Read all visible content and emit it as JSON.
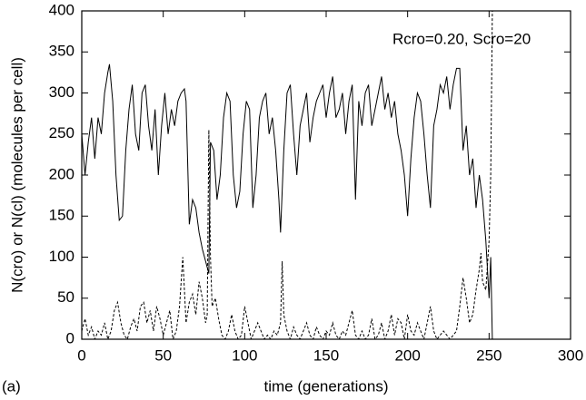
{
  "chart_data": {
    "type": "line",
    "xlabel": "time   (generations)",
    "ylabel": "N(cro) or N(cl)   (molecules per cell)",
    "annotation": "Rcro=0.20, Scro=20",
    "panel_label": "(a)",
    "xlim": [
      0,
      300
    ],
    "xticks": [
      0,
      50,
      100,
      150,
      200,
      250,
      300
    ],
    "ylim": [
      0,
      400
    ],
    "yticks": [
      0,
      50,
      100,
      150,
      200,
      250,
      300,
      350,
      400
    ],
    "series": [
      {
        "color": "#000000",
        "dashed": false,
        "x": [
          0,
          2,
          4,
          6,
          8,
          10,
          12,
          14,
          16,
          17,
          19,
          21,
          23,
          25,
          27,
          29,
          31,
          33,
          35,
          37,
          39,
          41,
          43,
          45,
          47,
          49,
          51,
          53,
          55,
          57,
          59,
          61,
          63,
          64,
          66,
          68,
          70,
          72,
          74,
          76,
          78,
          79,
          81,
          83,
          85,
          87,
          89,
          91,
          93,
          95,
          97,
          99,
          101,
          103,
          105,
          107,
          109,
          111,
          113,
          115,
          117,
          119,
          121,
          122,
          124,
          126,
          128,
          130,
          132,
          134,
          136,
          138,
          140,
          142,
          144,
          146,
          148,
          150,
          152,
          154,
          156,
          158,
          160,
          162,
          164,
          166,
          168,
          170,
          172,
          174,
          176,
          178,
          180,
          182,
          184,
          186,
          188,
          190,
          192,
          194,
          196,
          198,
          200,
          202,
          204,
          206,
          208,
          210,
          212,
          214,
          216,
          218,
          220,
          222,
          224,
          226,
          228,
          230,
          232,
          234,
          236,
          238,
          240,
          242,
          244,
          246,
          248,
          250,
          251,
          252
        ],
        "values": [
          250,
          200,
          240,
          270,
          220,
          270,
          250,
          300,
          325,
          335,
          290,
          200,
          145,
          150,
          230,
          280,
          310,
          250,
          230,
          300,
          310,
          260,
          230,
          280,
          200,
          260,
          300,
          250,
          280,
          260,
          290,
          300,
          305,
          290,
          140,
          170,
          160,
          130,
          110,
          95,
          80,
          240,
          230,
          170,
          200,
          270,
          300,
          290,
          200,
          160,
          180,
          250,
          290,
          280,
          160,
          200,
          270,
          290,
          300,
          250,
          270,
          230,
          170,
          130,
          230,
          300,
          310,
          250,
          200,
          260,
          280,
          300,
          240,
          270,
          290,
          300,
          310,
          270,
          300,
          320,
          270,
          280,
          300,
          250,
          290,
          310,
          170,
          290,
          260,
          300,
          310,
          260,
          280,
          300,
          320,
          280,
          300,
          270,
          290,
          250,
          230,
          200,
          150,
          220,
          270,
          300,
          290,
          250,
          200,
          160,
          260,
          280,
          310,
          300,
          320,
          280,
          310,
          330,
          330,
          230,
          260,
          200,
          220,
          160,
          200,
          170,
          120,
          50,
          100,
          0
        ]
      },
      {
        "color": "#000000",
        "dashed": true,
        "x": [
          0,
          2,
          4,
          6,
          8,
          10,
          12,
          14,
          16,
          18,
          20,
          22,
          24,
          26,
          28,
          30,
          32,
          34,
          36,
          38,
          40,
          42,
          44,
          46,
          48,
          50,
          52,
          54,
          56,
          58,
          60,
          62,
          63,
          64,
          66,
          68,
          70,
          72,
          74,
          76,
          77,
          78,
          79,
          80,
          82,
          84,
          86,
          88,
          90,
          92,
          94,
          96,
          98,
          100,
          102,
          104,
          106,
          108,
          110,
          112,
          114,
          116,
          118,
          120,
          122,
          123,
          124,
          126,
          128,
          130,
          132,
          134,
          136,
          138,
          140,
          142,
          144,
          146,
          148,
          150,
          152,
          154,
          156,
          158,
          160,
          162,
          164,
          166,
          168,
          170,
          172,
          174,
          176,
          178,
          180,
          182,
          184,
          186,
          188,
          190,
          192,
          194,
          196,
          198,
          200,
          202,
          204,
          206,
          208,
          210,
          212,
          214,
          216,
          218,
          220,
          222,
          224,
          226,
          228,
          230,
          232,
          234,
          236,
          238,
          240,
          242,
          244,
          245,
          246,
          248,
          250,
          251,
          252
        ],
        "values": [
          10,
          25,
          5,
          15,
          0,
          10,
          5,
          20,
          0,
          10,
          35,
          45,
          20,
          5,
          0,
          15,
          25,
          10,
          40,
          45,
          20,
          35,
          10,
          40,
          25,
          5,
          20,
          35,
          0,
          10,
          40,
          100,
          60,
          20,
          45,
          55,
          30,
          70,
          50,
          20,
          30,
          255,
          100,
          40,
          50,
          25,
          5,
          0,
          10,
          30,
          10,
          0,
          5,
          40,
          20,
          0,
          10,
          20,
          10,
          0,
          5,
          0,
          10,
          5,
          20,
          95,
          30,
          10,
          0,
          15,
          5,
          0,
          10,
          20,
          5,
          0,
          15,
          5,
          0,
          10,
          5,
          20,
          5,
          0,
          10,
          5,
          20,
          35,
          5,
          0,
          10,
          0,
          5,
          25,
          0,
          5,
          20,
          0,
          10,
          30,
          5,
          25,
          20,
          0,
          30,
          10,
          5,
          20,
          10,
          0,
          20,
          40,
          10,
          0,
          5,
          10,
          5,
          0,
          5,
          10,
          40,
          75,
          50,
          20,
          30,
          60,
          85,
          105,
          70,
          60,
          120,
          200,
          400
        ]
      }
    ]
  }
}
